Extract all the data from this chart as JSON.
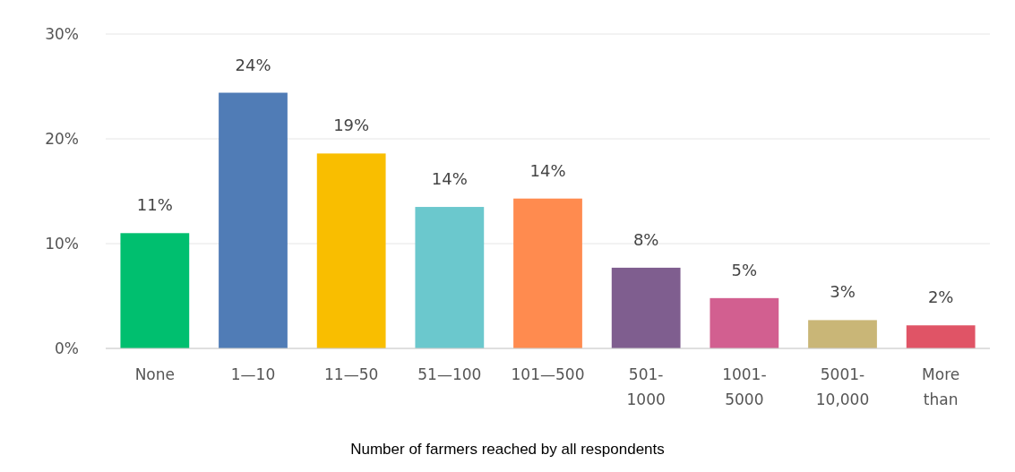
{
  "chart_data": {
    "type": "bar",
    "xlabel": "Number of farmers reached by all respondents",
    "categories": [
      "None",
      "1—10",
      "11—50",
      "51—100",
      "101—500",
      "501-1000",
      "1001-5000",
      "5001-10,000",
      "More than"
    ],
    "values": [
      11,
      24.4,
      18.6,
      13.5,
      14.3,
      7.7,
      4.8,
      2.7,
      2.2
    ],
    "value_labels": [
      "11%",
      "24%",
      "19%",
      "14%",
      "14%",
      "8%",
      "5%",
      "3%",
      "2%"
    ],
    "colors": [
      "#00bf6f",
      "#507cb6",
      "#f9be00",
      "#6bc8cd",
      "#ff8b4f",
      "#7f5e8f",
      "#d25f90",
      "#c9b677",
      "#e05466"
    ],
    "ylim": [
      0,
      30
    ],
    "yticks": [
      {
        "value": 0,
        "label": "0%"
      },
      {
        "value": 10,
        "label": "10%"
      },
      {
        "value": 20,
        "label": "20%"
      },
      {
        "value": 30,
        "label": "30%"
      }
    ],
    "grid": "y"
  }
}
